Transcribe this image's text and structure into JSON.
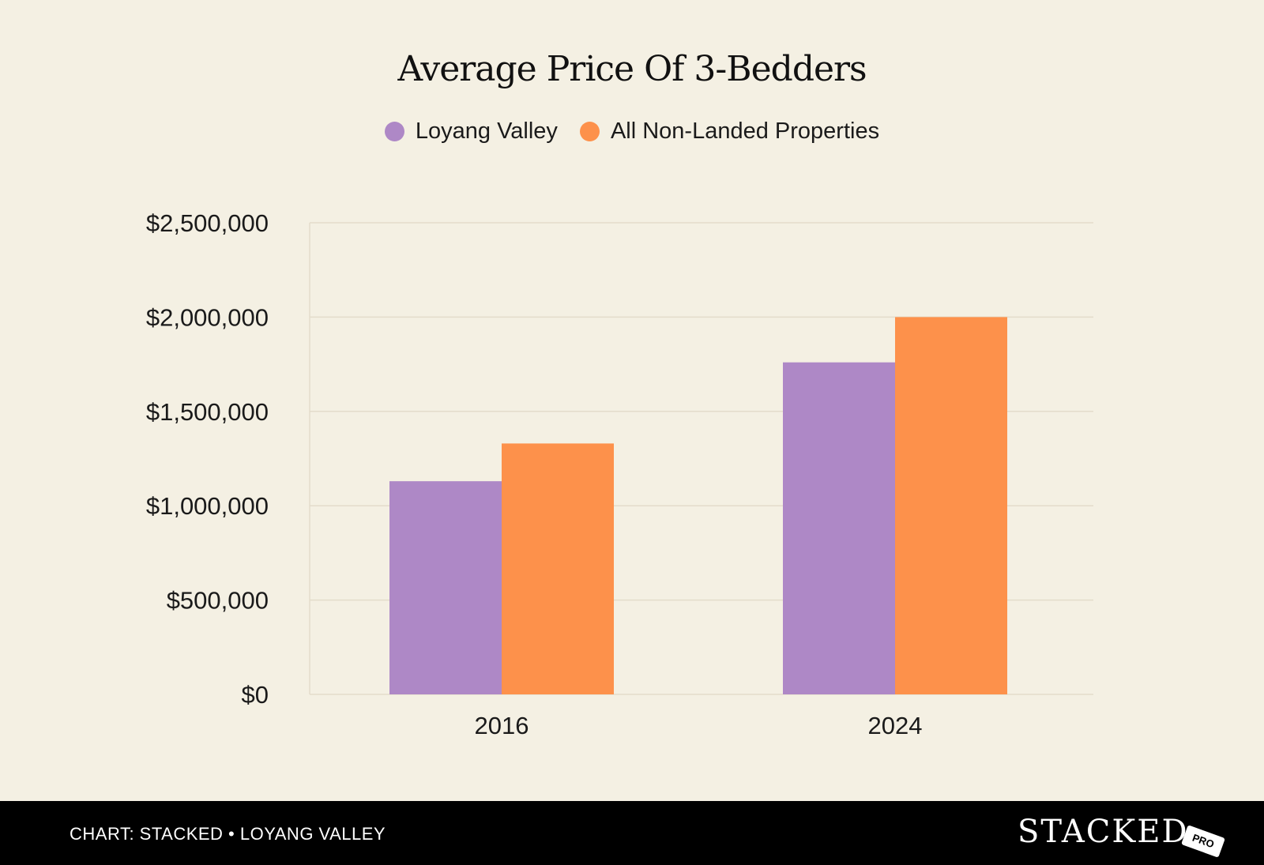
{
  "chart_data": {
    "type": "bar",
    "title": "Average Price Of 3-Bedders",
    "categories": [
      "2016",
      "2024"
    ],
    "series": [
      {
        "name": "Loyang Valley",
        "color": "#ae88c6",
        "values": [
          1130000,
          1760000
        ]
      },
      {
        "name": "All Non-Landed Properties",
        "color": "#fd914b",
        "values": [
          1330000,
          2000000
        ]
      }
    ],
    "ylim": [
      0,
      2500000
    ],
    "yticks": [
      0,
      500000,
      1000000,
      1500000,
      2000000,
      2500000
    ],
    "ytick_labels": [
      "$0",
      "$500,000",
      "$1,000,000",
      "$1,500,000",
      "$2,000,000",
      "$2,500,000"
    ],
    "xlabel": "",
    "ylabel": "",
    "grid": true,
    "legend": "top-center"
  },
  "footer": {
    "credit": "CHART: STACKED • LOYANG VALLEY",
    "brand": "STACKED",
    "brand_badge": "PRO"
  }
}
